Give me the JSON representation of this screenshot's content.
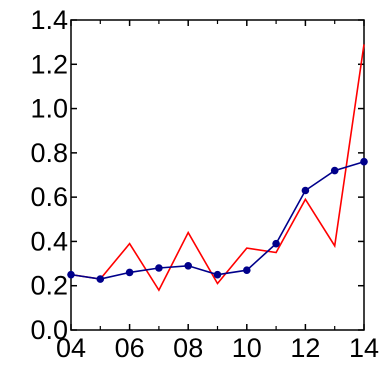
{
  "chart_data": {
    "type": "line",
    "title": "",
    "xlabel": "",
    "ylabel": "",
    "xlim": [
      2004,
      2014
    ],
    "ylim": [
      0.0,
      1.4
    ],
    "grid": false,
    "legend": "none",
    "x_ticks": [
      2004,
      2006,
      2008,
      2010,
      2012,
      2014
    ],
    "x_tick_labels": [
      "04",
      "06",
      "08",
      "10",
      "12",
      "14"
    ],
    "y_ticks": [
      0.0,
      0.2,
      0.4,
      0.6,
      0.8,
      1.0,
      1.2,
      1.4
    ],
    "y_tick_labels": [
      "0.0",
      "0.2",
      "0.4",
      "0.6",
      "0.8",
      "1.0",
      "1.2",
      "1.4"
    ],
    "x": [
      2004,
      2005,
      2006,
      2007,
      2008,
      2009,
      2010,
      2011,
      2012,
      2013,
      2014
    ],
    "series": [
      {
        "color": "#ff0000",
        "marker": "none",
        "values": [
          0.25,
          0.23,
          0.39,
          0.18,
          0.44,
          0.21,
          0.37,
          0.35,
          0.59,
          0.38,
          1.29
        ]
      },
      {
        "color": "#00008b",
        "marker": "circle",
        "values": [
          0.25,
          0.23,
          0.26,
          0.28,
          0.29,
          0.25,
          0.27,
          0.39,
          0.63,
          0.72,
          0.76
        ]
      }
    ],
    "colors": {
      "axis": "#000000",
      "background": "#ffffff"
    }
  }
}
